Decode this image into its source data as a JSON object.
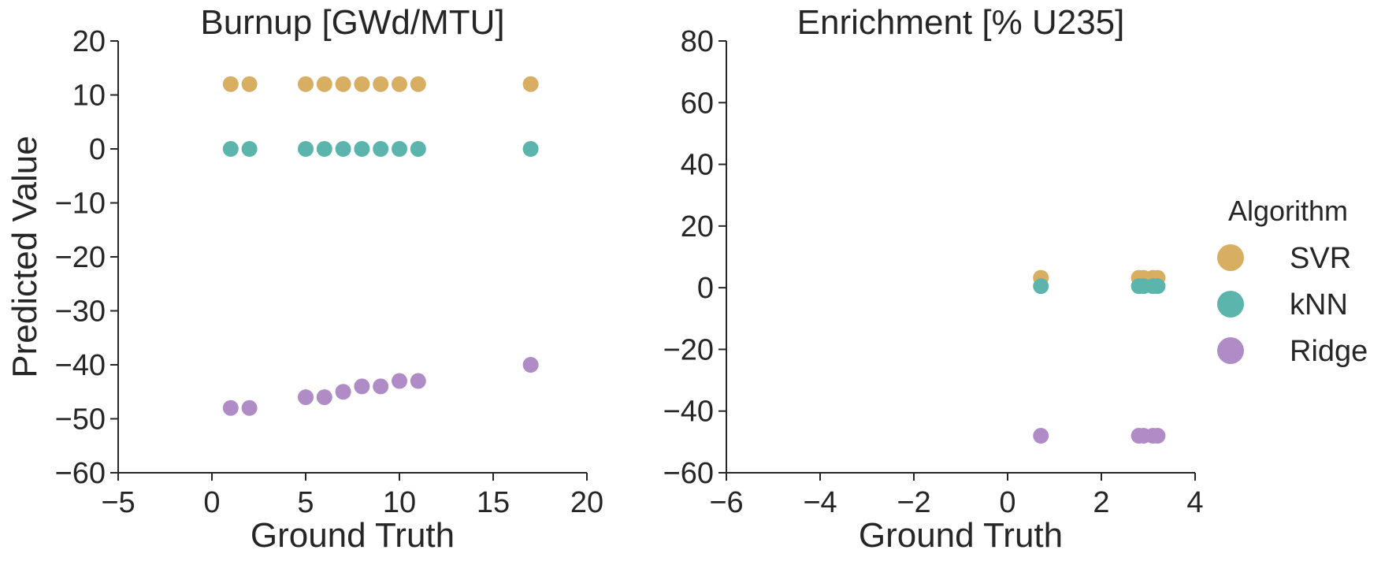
{
  "chart_data": [
    {
      "type": "scatter",
      "title": "Burnup [GWd/MTU]",
      "xlabel": "Ground Truth",
      "ylabel": "Predicted Value",
      "xlim": [
        -5,
        20
      ],
      "ylim": [
        -60,
        20
      ],
      "xticks": [
        -5,
        0,
        5,
        10,
        15,
        20
      ],
      "yticks": [
        20,
        10,
        0,
        -10,
        -20,
        -30,
        -40,
        -50,
        -60
      ],
      "xtick_labels": [
        "−5",
        "0",
        "5",
        "10",
        "15",
        "20"
      ],
      "ytick_labels": [
        "20",
        "10",
        "0",
        "−10",
        "−20",
        "−30",
        "−40",
        "−50",
        "−60"
      ],
      "grid": false,
      "series": [
        {
          "name": "SVR",
          "color": "#d8ae62",
          "x": [
            1,
            2,
            5,
            6,
            7,
            8,
            9,
            10,
            11,
            17
          ],
          "y": [
            12,
            12,
            12,
            12,
            12,
            12,
            12,
            12,
            12,
            12
          ]
        },
        {
          "name": "kNN",
          "color": "#5cb5ac",
          "x": [
            1,
            2,
            5,
            6,
            7,
            8,
            9,
            10,
            11,
            17
          ],
          "y": [
            0,
            0,
            0,
            0,
            0,
            0,
            0,
            0,
            0,
            0
          ]
        },
        {
          "name": "Ridge",
          "color": "#b08cc6",
          "x": [
            1,
            2,
            5,
            6,
            7,
            8,
            9,
            10,
            11,
            17
          ],
          "y": [
            -48,
            -48,
            -46,
            -46,
            -45,
            -44,
            -44,
            -43,
            -43,
            -40
          ]
        }
      ]
    },
    {
      "type": "scatter",
      "title": "Enrichment [% U235]",
      "xlabel": "Ground Truth",
      "ylabel": "",
      "xlim": [
        -6,
        4
      ],
      "ylim": [
        -60,
        80
      ],
      "xticks": [
        -6,
        -4,
        -2,
        0,
        2,
        4
      ],
      "yticks": [
        80,
        60,
        40,
        20,
        0,
        -20,
        -40,
        -60
      ],
      "xtick_labels": [
        "−6",
        "−4",
        "−2",
        "0",
        "2",
        "4"
      ],
      "ytick_labels": [
        "80",
        "60",
        "40",
        "20",
        "0",
        "−20",
        "−40",
        "−60"
      ],
      "grid": false,
      "series": [
        {
          "name": "SVR",
          "color": "#d8ae62",
          "x": [
            0.71,
            2.8,
            2.9,
            3.1,
            3.2
          ],
          "y": [
            3.2,
            3.2,
            3.2,
            3.2,
            3.2
          ]
        },
        {
          "name": "kNN",
          "color": "#5cb5ac",
          "x": [
            0.71,
            2.8,
            2.9,
            3.1,
            3.2
          ],
          "y": [
            0.5,
            0.5,
            0.5,
            0.5,
            0.5
          ]
        },
        {
          "name": "Ridge",
          "color": "#b08cc6",
          "x": [
            0.71,
            2.8,
            2.9,
            3.1,
            3.2
          ],
          "y": [
            -48,
            -48,
            -48,
            -48,
            -48
          ]
        }
      ]
    }
  ],
  "legend": {
    "title": "Algorithm",
    "placement": "right",
    "items": [
      {
        "label": "SVR",
        "color": "#d8ae62"
      },
      {
        "label": "kNN",
        "color": "#5cb5ac"
      },
      {
        "label": "Ridge",
        "color": "#b08cc6"
      }
    ]
  }
}
